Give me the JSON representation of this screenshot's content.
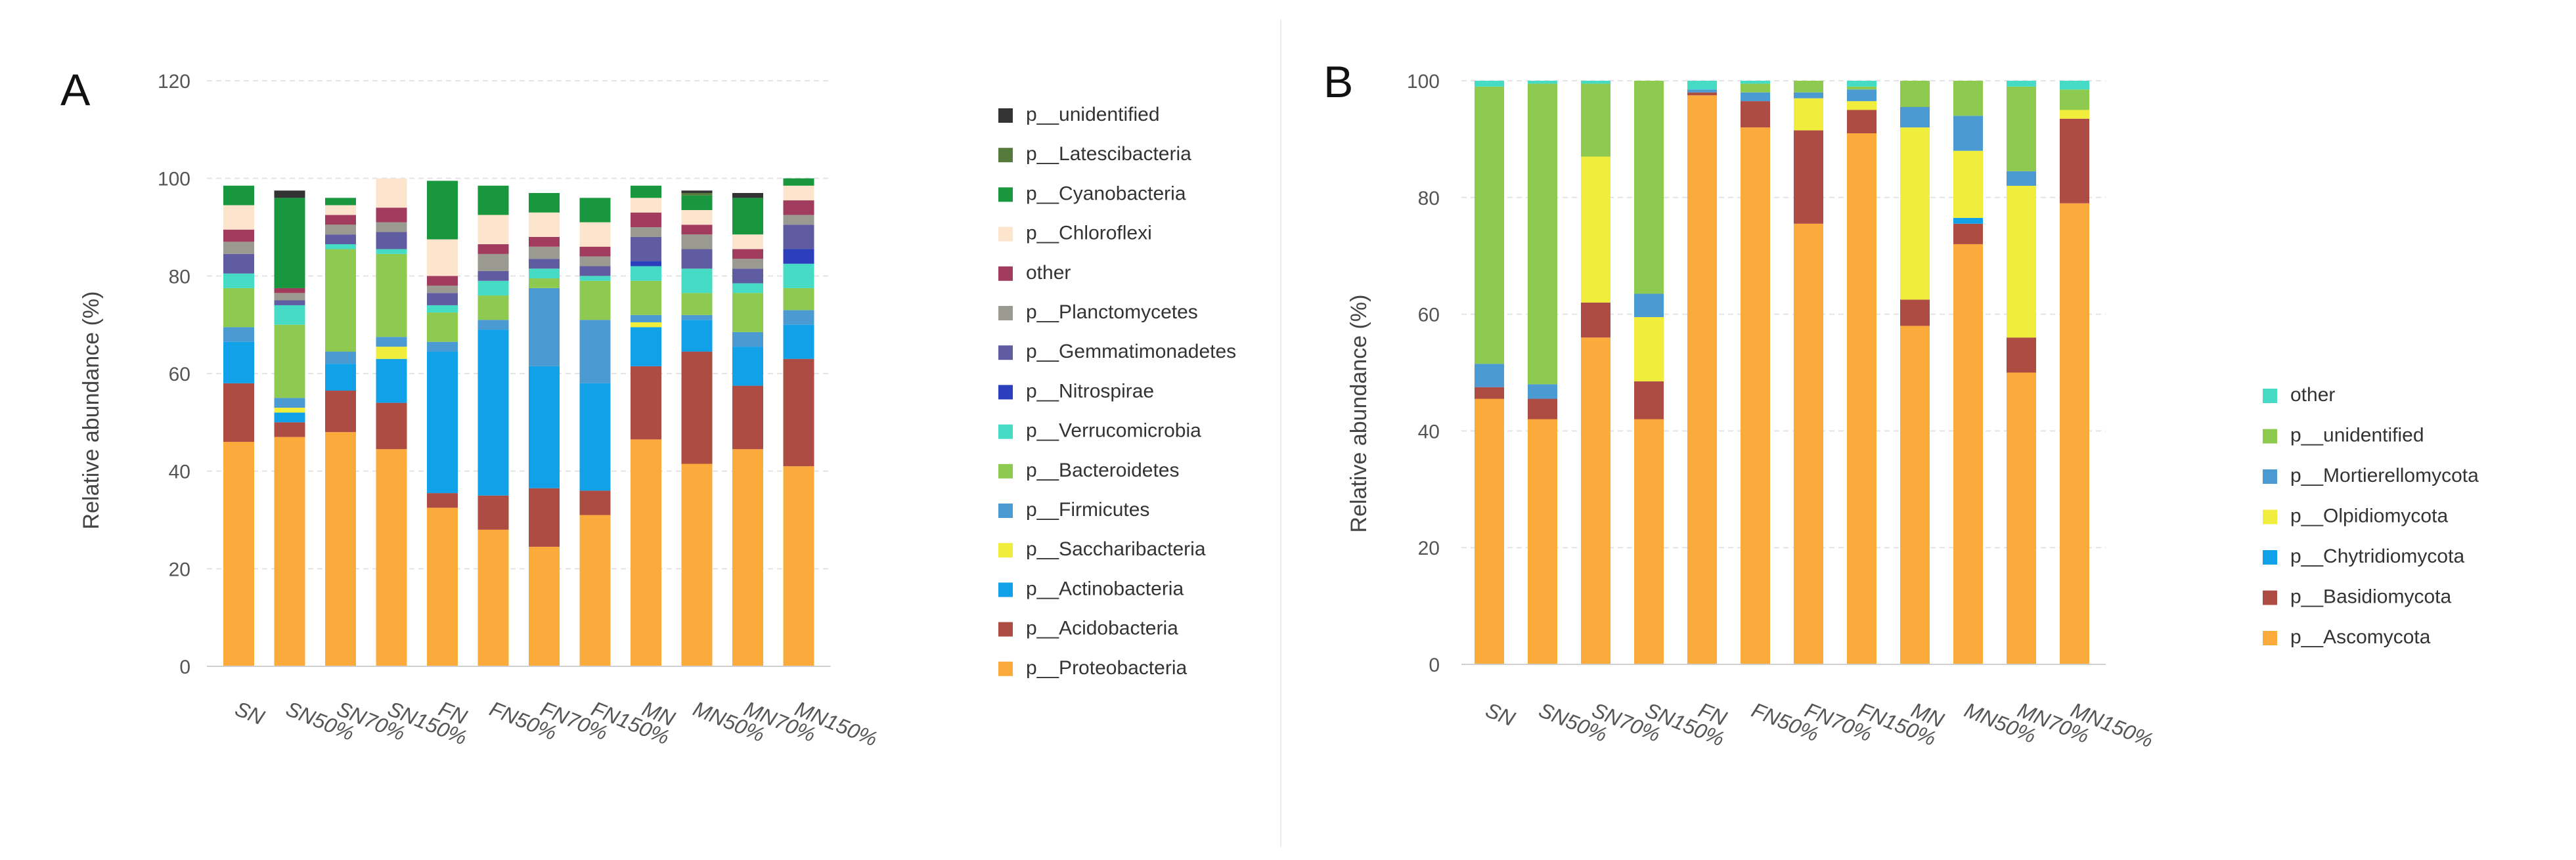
{
  "panels": [
    {
      "label": "A",
      "chart_data": {
        "type": "bar",
        "stacked": true,
        "title": "",
        "xlabel": "",
        "ylabel": "Relative abundance (%)",
        "ylim": [
          0,
          120
        ],
        "yticks": [
          0,
          20,
          40,
          60,
          80,
          100,
          120
        ],
        "grid": true,
        "legend_position": "right",
        "categories": [
          "SN",
          "SN50%",
          "SN70%",
          "SN150%",
          "FN",
          "FN50%",
          "FN70%",
          "FN150%",
          "MN",
          "MN50%",
          "MN70%",
          "MN150%"
        ],
        "series": [
          {
            "name": "p__Proteobacteria",
            "color": "#fbab3c",
            "values": [
              46,
              47,
              48,
              44.5,
              32.5,
              28,
              24.5,
              31,
              46.5,
              41.5,
              44.5,
              41
            ]
          },
          {
            "name": "p__Acidobacteria",
            "color": "#ad4c43",
            "values": [
              12,
              3,
              8.5,
              9.5,
              3,
              7,
              12,
              5,
              15,
              23,
              13,
              22
            ]
          },
          {
            "name": "p__Actinobacteria",
            "color": "#11a1e8",
            "values": [
              8.5,
              2,
              5.5,
              9,
              29,
              34,
              25,
              22,
              8,
              6.5,
              8,
              7
            ]
          },
          {
            "name": "p__Saccharibacteria",
            "color": "#f0ed3d",
            "values": [
              0,
              1,
              0,
              2.5,
              0,
              0,
              0,
              0,
              1,
              0,
              0,
              0
            ]
          },
          {
            "name": "p__Firmicutes",
            "color": "#4b9ad2",
            "values": [
              3,
              2,
              2.5,
              2,
              2,
              2,
              16,
              13,
              1.5,
              1,
              3,
              3
            ]
          },
          {
            "name": "p__Bacteroidetes",
            "color": "#8fca50",
            "values": [
              8,
              15,
              21,
              17,
              6,
              5,
              2,
              8,
              7,
              4.5,
              8,
              4.5
            ]
          },
          {
            "name": "p__Verrucomicrobia",
            "color": "#46dbc4",
            "values": [
              3,
              4,
              1,
              1,
              1.5,
              3,
              2,
              1,
              3,
              5,
              2,
              5
            ]
          },
          {
            "name": "p__Nitrospirae",
            "color": "#2b3fbd",
            "values": [
              0,
              0,
              0,
              0,
              0,
              0,
              0,
              0,
              1,
              0,
              0,
              3
            ]
          },
          {
            "name": "p__Gemmatimonadetes",
            "color": "#5f5ca1",
            "values": [
              4,
              1,
              2,
              3.5,
              2.5,
              2,
              2,
              2,
              5,
              4,
              3,
              5
            ]
          },
          {
            "name": "p__Planctomycetes",
            "color": "#9a9a90",
            "values": [
              2.5,
              1.5,
              2,
              2,
              1.5,
              3.5,
              2.5,
              2,
              2,
              3,
              2,
              2
            ]
          },
          {
            "name": "other",
            "color": "#a13c5f",
            "values": [
              2.5,
              1,
              2,
              3,
              2,
              2,
              2,
              2,
              3,
              2,
              2,
              3
            ]
          },
          {
            "name": "p__Chloroflexi",
            "color": "#fde4cc",
            "values": [
              5,
              0,
              2,
              6,
              7.5,
              6,
              5,
              5,
              3,
              3,
              3,
              3
            ]
          },
          {
            "name": "p__Cyanobacteria",
            "color": "#19973f",
            "values": [
              4,
              18.5,
              1.5,
              0,
              12,
              6,
              4,
              5,
              2.5,
              3,
              7.5,
              1.5
            ]
          },
          {
            "name": "p__Latescibacteria",
            "color": "#567a3c",
            "values": [
              0,
              0,
              0,
              0,
              0,
              0,
              0,
              0,
              0,
              0.5,
              0,
              0
            ]
          },
          {
            "name": "p__unidentified",
            "color": "#333333",
            "values": [
              0,
              1.5,
              0,
              0,
              0,
              0,
              0,
              0,
              0,
              0.5,
              1,
              0
            ]
          }
        ]
      }
    },
    {
      "label": "B",
      "chart_data": {
        "type": "bar",
        "stacked": true,
        "title": "",
        "xlabel": "",
        "ylabel": "Relative abundance (%)",
        "ylim": [
          0,
          100
        ],
        "yticks": [
          0,
          20,
          40,
          60,
          80,
          100
        ],
        "grid": true,
        "legend_position": "right",
        "categories": [
          "SN",
          "SN50%",
          "SN70%",
          "SN150%",
          "FN",
          "FN50%",
          "FN70%",
          "FN150%",
          "MN",
          "MN50%",
          "MN70%",
          "MN150%"
        ],
        "series": [
          {
            "name": "p__Ascomycota",
            "color": "#fbab3c",
            "values": [
              45.5,
              42,
              56,
              42,
              97.5,
              92,
              75.5,
              91,
              58,
              72,
              50,
              79
            ]
          },
          {
            "name": "p__Basidiomycota",
            "color": "#ad4c43",
            "values": [
              2,
              3.5,
              6,
              6.5,
              0.5,
              4.5,
              16,
              4,
              4.5,
              3.5,
              6,
              14.5
            ]
          },
          {
            "name": "p__Chytridiomycota",
            "color": "#11a1e8",
            "values": [
              0,
              0,
              0,
              0,
              0,
              0,
              0,
              0,
              0,
              1,
              0,
              0
            ]
          },
          {
            "name": "p__Olpidiomycota",
            "color": "#f0ed3d",
            "values": [
              0,
              0,
              25,
              11,
              0,
              0,
              5.5,
              1.5,
              29.5,
              11.5,
              26,
              1.5
            ]
          },
          {
            "name": "p__Mortierellomycota",
            "color": "#4b9ad2",
            "values": [
              4,
              2.5,
              0,
              4,
              0.5,
              1.5,
              1,
              2,
              3.5,
              6,
              2.5,
              0
            ]
          },
          {
            "name": "p__unidentified",
            "color": "#8fca50",
            "values": [
              47.5,
              51.5,
              12.5,
              36.5,
              0,
              1.5,
              2,
              0.5,
              4.5,
              6,
              14.5,
              3.5
            ]
          },
          {
            "name": "other",
            "color": "#46dbc4",
            "values": [
              1,
              0.5,
              0.5,
              0,
              1.5,
              0.5,
              0,
              1,
              0,
              0,
              1,
              1.5
            ]
          }
        ]
      }
    }
  ]
}
